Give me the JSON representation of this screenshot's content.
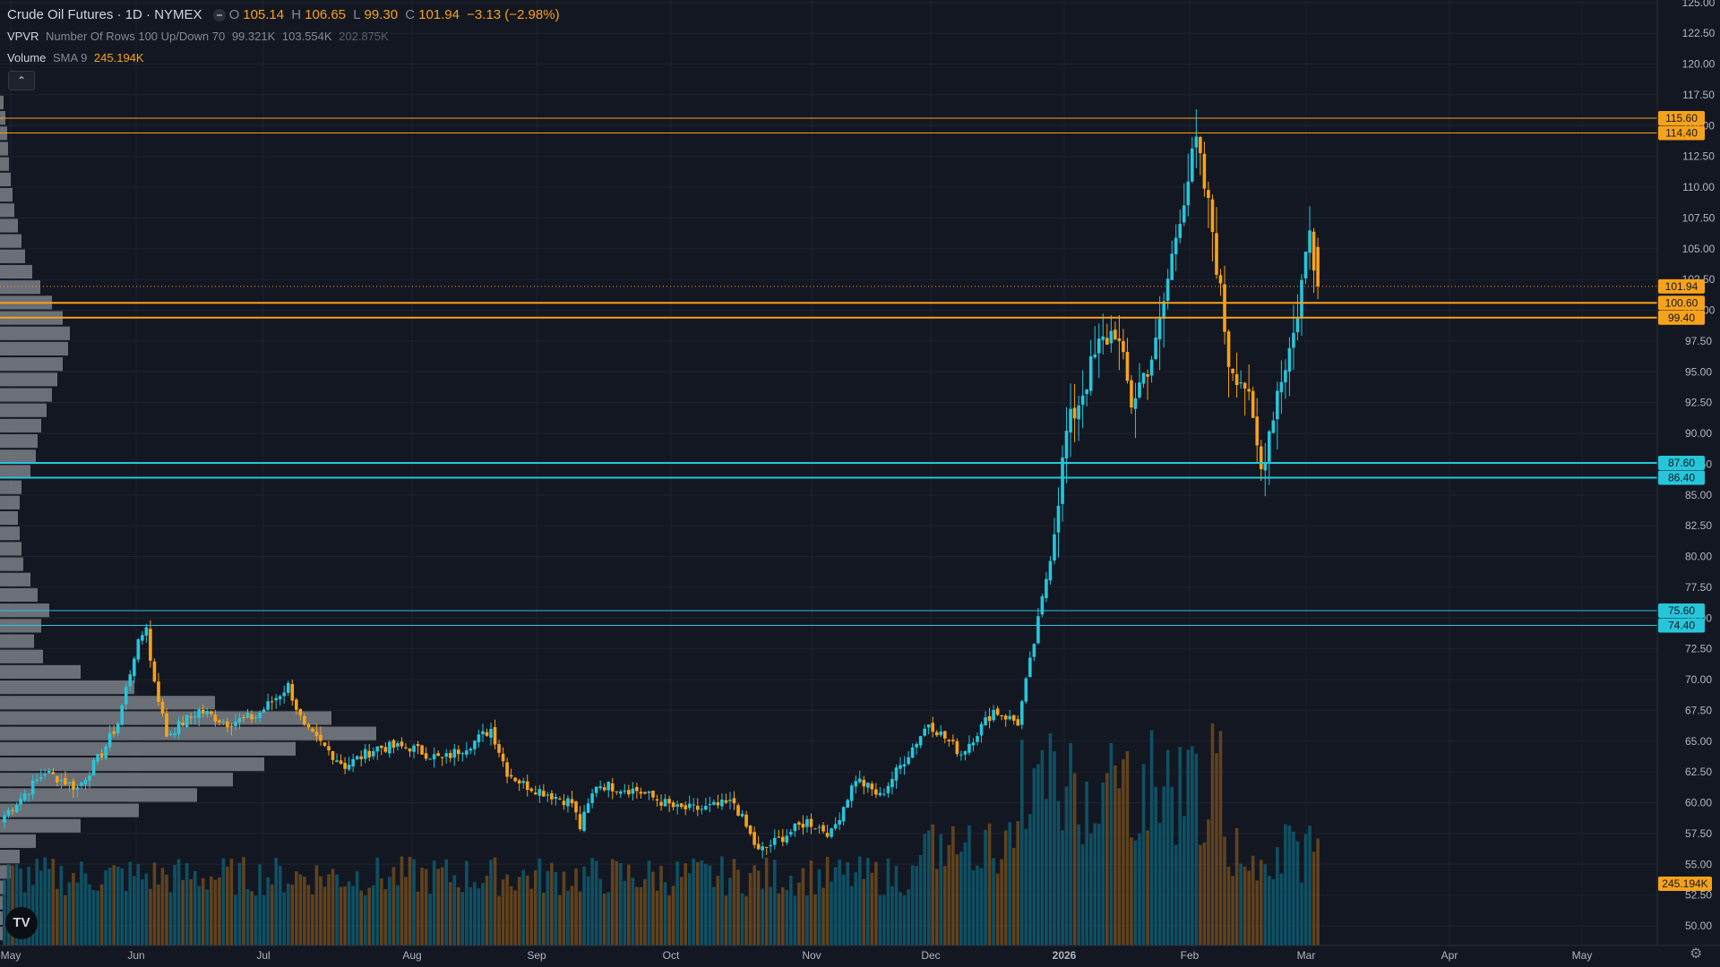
{
  "legend": {
    "title": "Crude Oil Futures · 1D · NYMEX",
    "o_label": "O",
    "o_val": "105.14",
    "h_label": "H",
    "h_val": "106.65",
    "l_label": "L",
    "l_val": "99.30",
    "c_label": "C",
    "c_val": "101.94",
    "change": "−3.13 (−2.98%)",
    "vpvr_name": "VPVR",
    "vpvr_params": "Number Of Rows 100 Up/Down 70",
    "vpvr_up": "99.321K",
    "vpvr_down": "103.554K",
    "vpvr_total": "202.875K",
    "vol_name": "Volume",
    "vol_params": "SMA 9",
    "vol_val": "245.194K",
    "collapse_icon": "chevron-up-icon",
    "logo_text": "TV"
  },
  "colors": {
    "background": "#131722",
    "up": "#26c6da",
    "down": "#f7a21b",
    "grid": "#1e222d",
    "axis_text": "#b2b5be",
    "volume_profile": "#8a8d94"
  },
  "chart_data": {
    "type": "candlestick",
    "title": "Crude Oil Futures · 1D · NYMEX",
    "ylim": [
      48.75,
      125
    ],
    "y_ticks": [
      "125.00",
      "122.50",
      "120.00",
      "117.50",
      "115.00",
      "112.50",
      "110.00",
      "107.50",
      "105.00",
      "102.50",
      "100.00",
      "97.50",
      "95.00",
      "92.50",
      "90.00",
      "87.50",
      "85.00",
      "82.50",
      "80.00",
      "77.50",
      "75.00",
      "72.50",
      "70.00",
      "67.50",
      "65.00",
      "62.50",
      "60.00",
      "57.50",
      "55.00",
      "52.50",
      "50.00"
    ],
    "x_ticks": [
      "May",
      "Jun",
      "Jul",
      "Aug",
      "Sep",
      "Oct",
      "Nov",
      "Dec",
      "2026",
      "Feb",
      "Mar",
      "Apr",
      "May"
    ],
    "price_lines": [
      {
        "price": 115.6,
        "label": "115.60",
        "color": "#f7a21b",
        "width": 1
      },
      {
        "price": 114.4,
        "label": "114.40",
        "color": "#f7a21b",
        "width": 1
      },
      {
        "price": 100.6,
        "label": "100.60",
        "color": "#f7a21b",
        "width": 2
      },
      {
        "price": 99.4,
        "label": "99.40",
        "color": "#f7a21b",
        "width": 2
      },
      {
        "price": 87.6,
        "label": "87.60",
        "color": "#26c6da",
        "width": 2
      },
      {
        "price": 86.4,
        "label": "86.40",
        "color": "#26c6da",
        "width": 2
      },
      {
        "price": 75.6,
        "label": "75.60",
        "color": "#26c6da",
        "width": 1
      },
      {
        "price": 74.4,
        "label": "74.40",
        "color": "#26c6da",
        "width": 1
      }
    ],
    "last_price": {
      "price": 101.94,
      "label": "101.94"
    },
    "volume_sma_label": "245.194K",
    "anchors": [
      [
        0,
        59.0
      ],
      [
        10,
        62.5
      ],
      [
        18,
        61.2
      ],
      [
        24,
        64.0
      ],
      [
        28,
        66.5
      ],
      [
        32,
        72.0
      ],
      [
        35,
        74.5
      ],
      [
        36,
        71.5
      ],
      [
        40,
        65.5
      ],
      [
        48,
        67.5
      ],
      [
        55,
        66.5
      ],
      [
        62,
        67.0
      ],
      [
        70,
        69.5
      ],
      [
        74,
        66.0
      ],
      [
        84,
        63.0
      ],
      [
        92,
        64.5
      ],
      [
        100,
        64.5
      ],
      [
        108,
        63.5
      ],
      [
        116,
        65.0
      ],
      [
        120,
        66.0
      ],
      [
        124,
        62.5
      ],
      [
        128,
        61.5
      ],
      [
        140,
        60.0
      ],
      [
        142,
        58.0
      ],
      [
        146,
        61.5
      ],
      [
        156,
        61.0
      ],
      [
        166,
        59.5
      ],
      [
        172,
        59.5
      ],
      [
        180,
        60.0
      ],
      [
        186,
        56.0
      ],
      [
        190,
        56.8
      ],
      [
        198,
        58.5
      ],
      [
        204,
        57.5
      ],
      [
        210,
        62.0
      ],
      [
        216,
        60.5
      ],
      [
        222,
        63.5
      ],
      [
        228,
        66.5
      ],
      [
        236,
        64.0
      ],
      [
        244,
        67.5
      ],
      [
        250,
        66.5
      ],
      [
        254,
        73.0
      ],
      [
        258,
        80.0
      ],
      [
        262,
        90.0
      ],
      [
        270,
        97.0
      ],
      [
        274,
        98.5
      ],
      [
        278,
        92.5
      ],
      [
        284,
        97.0
      ],
      [
        290,
        108.0
      ],
      [
        294,
        113.5
      ],
      [
        298,
        106.5
      ],
      [
        302,
        96.0
      ],
      [
        306,
        94.0
      ],
      [
        310,
        87.0
      ],
      [
        314,
        93.5
      ],
      [
        318,
        98.0
      ],
      [
        322,
        106.5
      ],
      [
        324,
        101.9
      ]
    ],
    "volume_profile_rows": [
      [
        48.75,
        3
      ],
      [
        50.0,
        3
      ],
      [
        51.25,
        3
      ],
      [
        52.5,
        6
      ],
      [
        53.75,
        12
      ],
      [
        55.0,
        22
      ],
      [
        56.25,
        40
      ],
      [
        57.5,
        90
      ],
      [
        58.75,
        155
      ],
      [
        60.0,
        220
      ],
      [
        61.25,
        260
      ],
      [
        62.5,
        295
      ],
      [
        63.75,
        330
      ],
      [
        65.0,
        420
      ],
      [
        66.25,
        370
      ],
      [
        67.5,
        240
      ],
      [
        68.75,
        150
      ],
      [
        70.0,
        90
      ],
      [
        71.25,
        48
      ],
      [
        72.5,
        38
      ],
      [
        73.75,
        46
      ],
      [
        75.0,
        55
      ],
      [
        76.25,
        42
      ],
      [
        77.5,
        34
      ],
      [
        78.75,
        26
      ],
      [
        80.0,
        24
      ],
      [
        81.25,
        22
      ],
      [
        82.5,
        20
      ],
      [
        83.75,
        22
      ],
      [
        85.0,
        24
      ],
      [
        86.25,
        34
      ],
      [
        87.5,
        40
      ],
      [
        88.75,
        42
      ],
      [
        90.0,
        46
      ],
      [
        91.25,
        52
      ],
      [
        92.5,
        58
      ],
      [
        93.75,
        64
      ],
      [
        95.0,
        70
      ],
      [
        96.25,
        76
      ],
      [
        97.5,
        78
      ],
      [
        98.75,
        70
      ],
      [
        100.0,
        58
      ],
      [
        101.25,
        45
      ],
      [
        102.5,
        36
      ],
      [
        103.75,
        28
      ],
      [
        105.0,
        24
      ],
      [
        106.25,
        20
      ],
      [
        107.5,
        16
      ],
      [
        108.75,
        14
      ],
      [
        110.0,
        12
      ],
      [
        111.25,
        10
      ],
      [
        112.5,
        9
      ],
      [
        113.75,
        8
      ],
      [
        115.0,
        6
      ],
      [
        116.25,
        4
      ]
    ]
  }
}
